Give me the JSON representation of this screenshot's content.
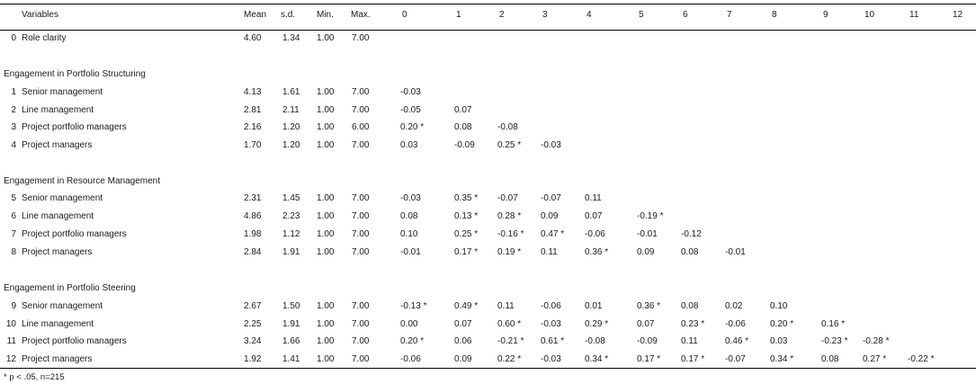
{
  "headers": {
    "variables": "Variables",
    "mean": "Mean",
    "sd": "s.d.",
    "min": "Min.",
    "max": "Max.",
    "cols": [
      "0",
      "1",
      "2",
      "3",
      "4",
      "5",
      "6",
      "7",
      "8",
      "9",
      "10",
      "11",
      "12"
    ]
  },
  "sections": {
    "structuring": "Engagement in Portfolio Structuring",
    "resource": "Engagement in Resource Management",
    "steering": "Engagement in Portfolio Steering"
  },
  "rows": [
    {
      "num": "0",
      "label": "Role clarity",
      "mean": "4.60",
      "sd": "1.34",
      "min": "1.00",
      "max": "7.00",
      "corr": []
    },
    {
      "num": "1",
      "label": "Senior management",
      "mean": "4.13",
      "sd": "1.61",
      "min": "1.00",
      "max": "7.00",
      "corr": [
        "-0.03"
      ]
    },
    {
      "num": "2",
      "label": "Line management",
      "mean": "2.81",
      "sd": "2.11",
      "min": "1.00",
      "max": "7.00",
      "corr": [
        "-0.05",
        "0.07"
      ]
    },
    {
      "num": "3",
      "label": "Project portfolio managers",
      "mean": "2.16",
      "sd": "1.20",
      "min": "1.00",
      "max": "6.00",
      "corr": [
        "0.20 *",
        "0.08",
        "-0.08"
      ]
    },
    {
      "num": "4",
      "label": "Project managers",
      "mean": "1.70",
      "sd": "1.20",
      "min": "1.00",
      "max": "7.00",
      "corr": [
        "0.03",
        "-0.09",
        "0.25 *",
        "-0.03"
      ]
    },
    {
      "num": "5",
      "label": "Senior management",
      "mean": "2.31",
      "sd": "1.45",
      "min": "1.00",
      "max": "7.00",
      "corr": [
        "-0.03",
        "0.35 *",
        "-0.07",
        "-0.07",
        "0.11"
      ]
    },
    {
      "num": "6",
      "label": "Line management",
      "mean": "4.86",
      "sd": "2.23",
      "min": "1.00",
      "max": "7.00",
      "corr": [
        "0.08",
        "0.13 *",
        "0.28 *",
        "0.09",
        "0.07",
        "-0.19 *"
      ]
    },
    {
      "num": "7",
      "label": "Project portfolio managers",
      "mean": "1.98",
      "sd": "1.12",
      "min": "1.00",
      "max": "7.00",
      "corr": [
        "0.10",
        "0.25 *",
        "-0.16 *",
        "0.47 *",
        "-0.06",
        "-0.01",
        "-0.12"
      ]
    },
    {
      "num": "8",
      "label": "Project managers",
      "mean": "2.84",
      "sd": "1.91",
      "min": "1.00",
      "max": "7.00",
      "corr": [
        "-0.01",
        "0.17 *",
        "0.19 *",
        "0.11",
        "0.36 *",
        "0.09",
        "0.08",
        "-0.01"
      ]
    },
    {
      "num": "9",
      "label": "Senior management",
      "mean": "2.67",
      "sd": "1.50",
      "min": "1.00",
      "max": "7.00",
      "corr": [
        "-0.13 *",
        "0.49 *",
        "0.11",
        "-0.06",
        "0.01",
        "0.36 *",
        "0.08",
        "0.02",
        "0.10"
      ]
    },
    {
      "num": "10",
      "label": "Line management",
      "mean": "2.25",
      "sd": "1.91",
      "min": "1.00",
      "max": "7.00",
      "corr": [
        "0.00",
        "0.07",
        "0.60 *",
        "-0.03",
        "0.29 *",
        "0.07",
        "0.23 *",
        "-0.06",
        "0.20 *",
        "0.16 *"
      ]
    },
    {
      "num": "11",
      "label": "Project portfolio managers",
      "mean": "3.24",
      "sd": "1.66",
      "min": "1.00",
      "max": "7.00",
      "corr": [
        "0.20 *",
        "0.06",
        "-0.21 *",
        "0.61 *",
        "-0.08",
        "-0.09",
        "0.11",
        "0.46 *",
        "0.03",
        "-0.23 *",
        "-0.28 *"
      ]
    },
    {
      "num": "12",
      "label": "Project managers",
      "mean": "1.92",
      "sd": "1.41",
      "min": "1.00",
      "max": "7.00",
      "corr": [
        "-0.06",
        "0.09",
        "0.22 *",
        "-0.03",
        "0.34 *",
        "0.17 *",
        "0.17 *",
        "-0.07",
        "0.34 *",
        "0.08",
        "0.27 *",
        "-0.22 *"
      ]
    }
  ],
  "note": "* p < .05, n=215"
}
